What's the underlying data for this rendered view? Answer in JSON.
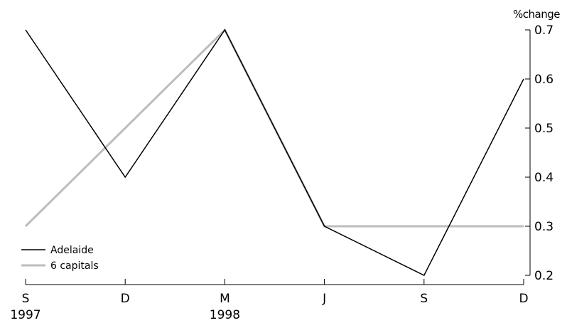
{
  "chart_data": {
    "type": "line",
    "title": "",
    "xlabel": "",
    "ylabel": "%change",
    "ylim": [
      0.2,
      0.7
    ],
    "yticks": [
      0.2,
      0.3,
      0.4,
      0.5,
      0.6,
      0.7
    ],
    "ytick_labels": [
      "0.2",
      "0.3",
      "0.4",
      "0.5",
      "0.6",
      "0.7"
    ],
    "y_axis_position": "right",
    "grid": false,
    "legend_position": "bottom-left",
    "categories": [
      "S",
      "D",
      "M",
      "J",
      "S",
      "D"
    ],
    "year_labels": [
      "1997",
      "",
      "1998",
      "",
      "",
      ""
    ],
    "series": [
      {
        "name": "Adelaide",
        "color": "#000000",
        "values": [
          0.7,
          0.4,
          0.7,
          0.3,
          0.2,
          0.6
        ]
      },
      {
        "name": "6 capitals",
        "color": "#bdbdbd",
        "values": [
          0.3,
          0.5,
          0.7,
          0.3,
          0.3,
          0.3
        ]
      }
    ]
  }
}
